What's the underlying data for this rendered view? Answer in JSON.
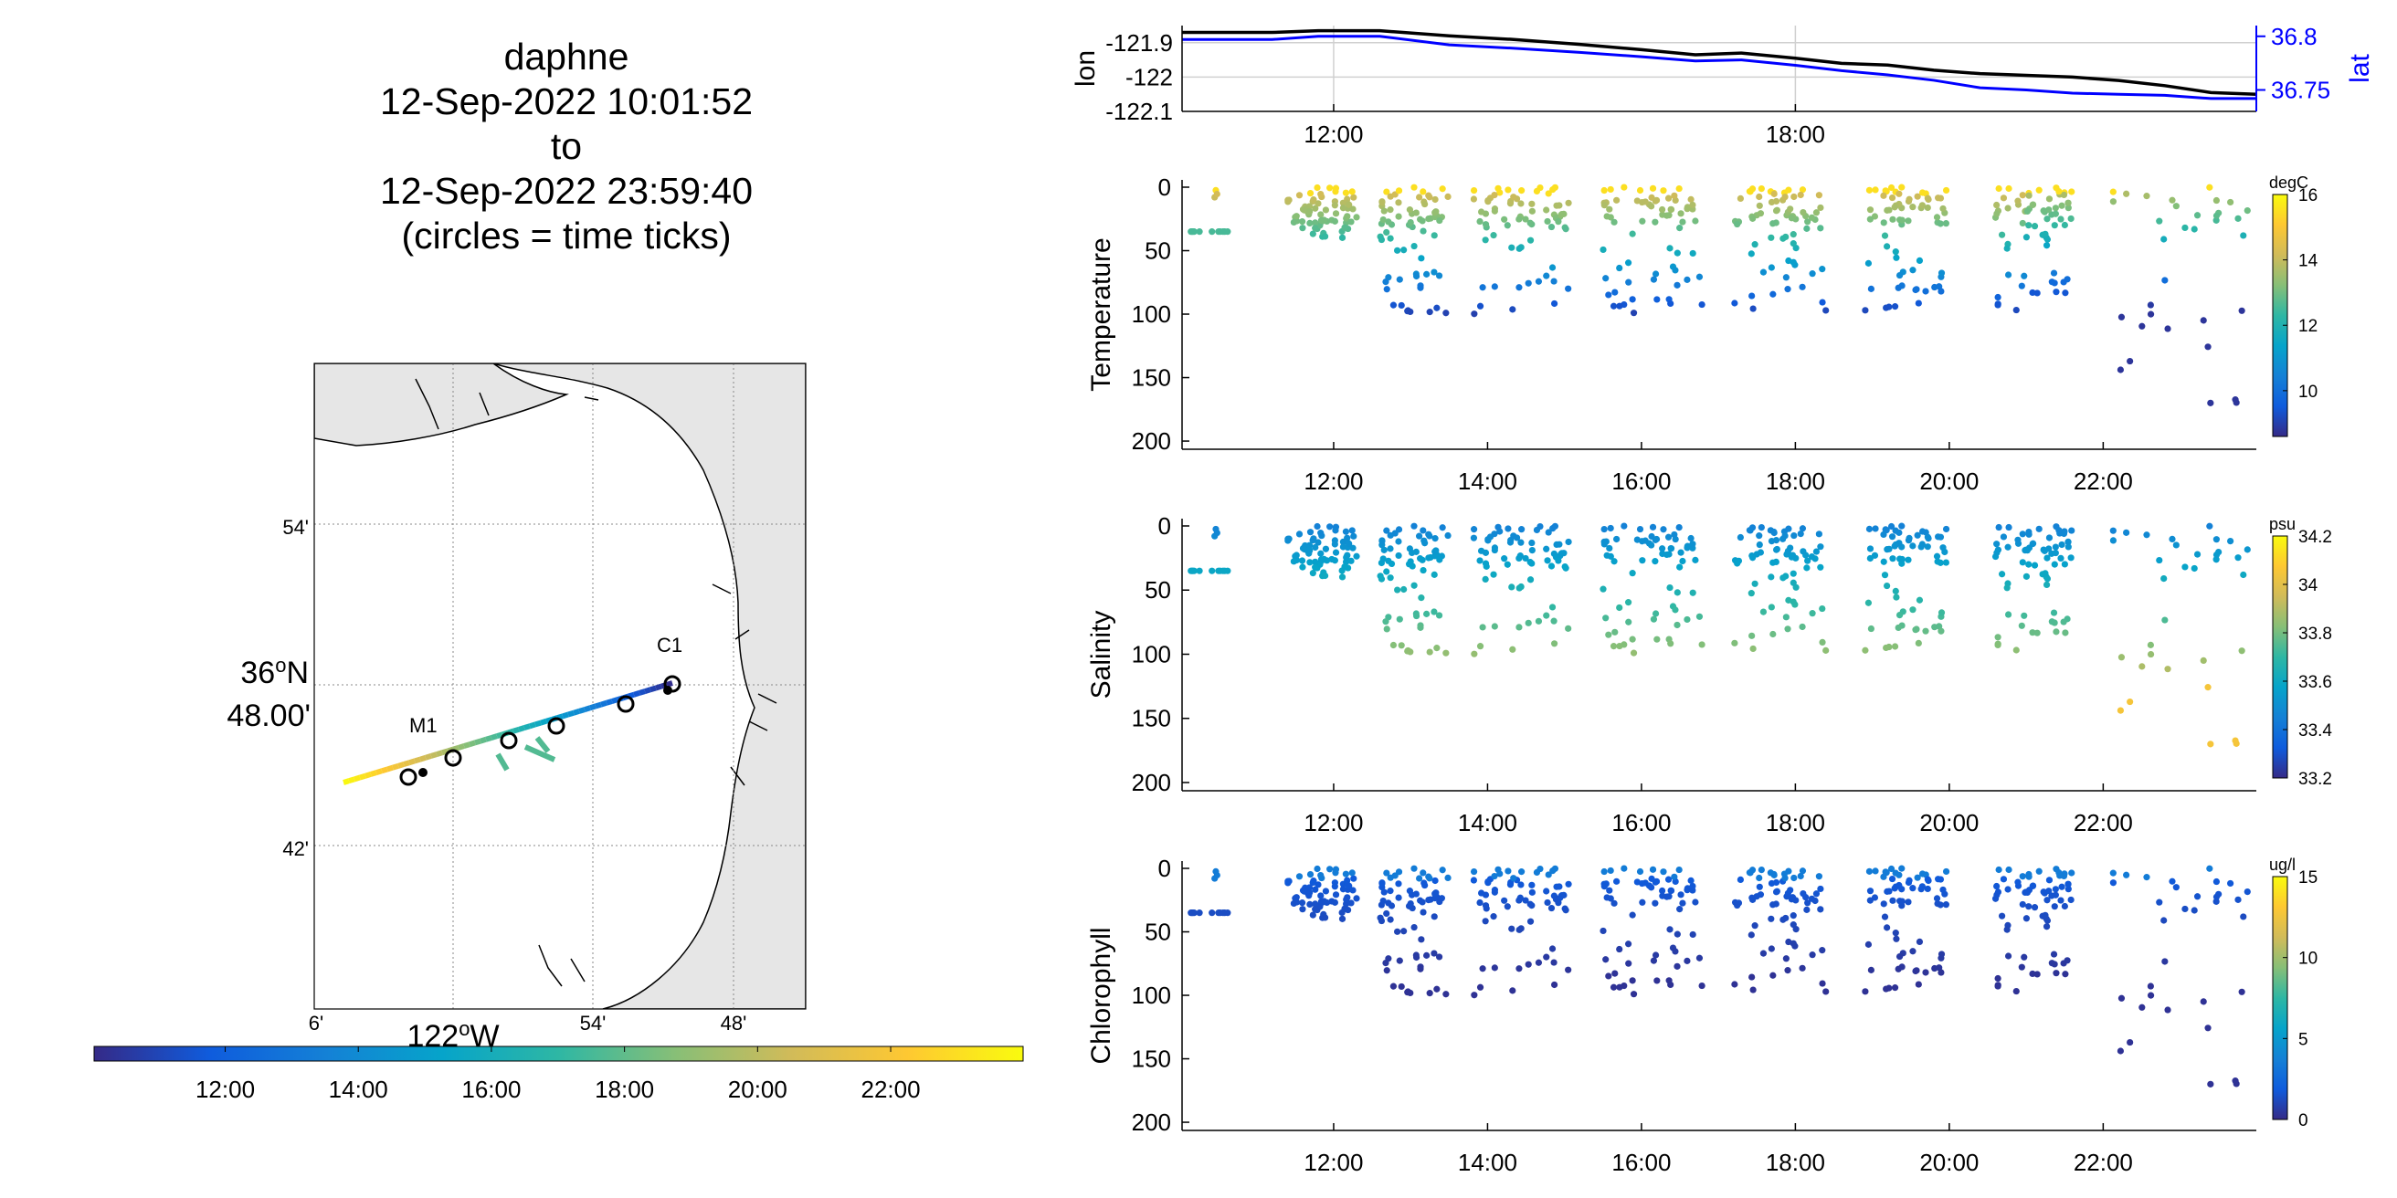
{
  "title": {
    "lines": [
      "daphne",
      "12-Sep-2022 10:01:52",
      "to",
      "12-Sep-2022 23:59:40",
      "(circles = time ticks)"
    ]
  },
  "colors": {
    "parula": [
      "#352a87",
      "#0f5cdd",
      "#1481d6",
      "#06a4ca",
      "#2eb7a4",
      "#87bf77",
      "#d1bb59",
      "#fec832",
      "#f9fb0e"
    ],
    "lon_line": "#000000",
    "lat_line": "#0000ff",
    "land": "#e6e6e6",
    "grid": "#b0b0b0"
  },
  "map": {
    "lat_ticks": [
      "54'",
      "36ºN 48.00'",
      "42'"
    ],
    "lat_tick_main": {
      "deg": "36",
      "sup": "o",
      "hemi": "N",
      "min": "48.00'"
    },
    "lon_ticks": [
      "6'",
      "122ºW",
      "54'",
      "48'"
    ],
    "lon_tick_main": {
      "deg": "122",
      "sup": "o",
      "hemi": "W"
    },
    "stations": [
      {
        "name": "M1"
      },
      {
        "name": "C1"
      }
    ],
    "colorbar_ticks": [
      "12:00",
      "14:00",
      "16:00",
      "18:00",
      "20:00",
      "22:00"
    ]
  },
  "chart_data": [
    {
      "type": "line",
      "panel": "lon-lat",
      "xlabel": "",
      "x_ticks": [
        "12:00",
        "18:00"
      ],
      "x_range_hours": [
        10.03,
        23.99
      ],
      "left_axis": {
        "label": "lon",
        "ticks": [
          "-121.9",
          "-122",
          "-122.1"
        ],
        "ylim": [
          -122.1,
          -121.85
        ]
      },
      "right_axis": {
        "label": "lat",
        "ticks": [
          "36.8",
          "36.75"
        ],
        "ylim": [
          36.73,
          36.81
        ]
      },
      "series": [
        {
          "name": "lon",
          "x": [
            10.03,
            11.2,
            11.8,
            12.6,
            13.5,
            14.3,
            15.2,
            16.0,
            16.7,
            17.3,
            18.0,
            18.6,
            19.2,
            19.8,
            20.4,
            21.0,
            21.6,
            22.2,
            22.8,
            23.4,
            23.99
          ],
          "values": [
            -121.87,
            -121.87,
            -121.865,
            -121.865,
            -121.88,
            -121.89,
            -121.905,
            -121.92,
            -121.935,
            -121.93,
            -121.945,
            -121.96,
            -121.965,
            -121.98,
            -121.99,
            -121.995,
            -122.0,
            -122.01,
            -122.025,
            -122.045,
            -122.05
          ]
        },
        {
          "name": "lat",
          "x": [
            10.03,
            11.2,
            11.8,
            12.6,
            13.5,
            14.3,
            15.2,
            16.0,
            16.7,
            17.3,
            18.0,
            18.6,
            19.2,
            19.8,
            20.4,
            21.0,
            21.6,
            22.2,
            22.8,
            23.4,
            23.99
          ],
          "values": [
            36.797,
            36.797,
            36.8,
            36.8,
            36.792,
            36.789,
            36.785,
            36.781,
            36.777,
            36.778,
            36.773,
            36.768,
            36.764,
            36.759,
            36.752,
            36.75,
            36.747,
            36.746,
            36.745,
            36.742,
            36.742
          ]
        }
      ]
    },
    {
      "type": "scatter",
      "panel": "temperature",
      "ylabel": "Temperature",
      "x_ticks": [
        "12:00",
        "14:00",
        "16:00",
        "18:00",
        "20:00",
        "22:00"
      ],
      "x_range_hours": [
        10.03,
        23.99
      ],
      "ylim": [
        0,
        205
      ],
      "y_ticks": [
        0,
        50,
        100,
        150,
        200
      ],
      "y_reversed": true,
      "colorbar": {
        "unit": "degC",
        "ticks": [
          10,
          12,
          14,
          16
        ],
        "clim": [
          8.6,
          16
        ]
      }
    },
    {
      "type": "scatter",
      "panel": "salinity",
      "ylabel": "Salinity",
      "x_ticks": [
        "12:00",
        "14:00",
        "16:00",
        "18:00",
        "20:00",
        "22:00"
      ],
      "x_range_hours": [
        10.03,
        23.99
      ],
      "ylim": [
        0,
        205
      ],
      "y_ticks": [
        0,
        50,
        100,
        150,
        200
      ],
      "y_reversed": true,
      "colorbar": {
        "unit": "psu",
        "ticks": [
          33.2,
          33.4,
          33.6,
          33.8,
          34,
          34.2
        ],
        "tick_labels": [
          "33.2",
          "33.4",
          "33.6",
          "33.8",
          "34",
          "34.2"
        ],
        "clim": [
          33.2,
          34.2
        ]
      }
    },
    {
      "type": "scatter",
      "panel": "chlorophyll",
      "ylabel": "Chlorophyll",
      "x_ticks": [
        "12:00",
        "14:00",
        "16:00",
        "18:00",
        "20:00",
        "22:00"
      ],
      "x_range_hours": [
        10.03,
        23.99
      ],
      "ylim": [
        0,
        205
      ],
      "y_ticks": [
        0,
        50,
        100,
        150,
        200
      ],
      "y_reversed": true,
      "colorbar": {
        "unit": "ug/l",
        "ticks": [
          0,
          5,
          10,
          15
        ],
        "clim": [
          0,
          15
        ]
      }
    }
  ]
}
